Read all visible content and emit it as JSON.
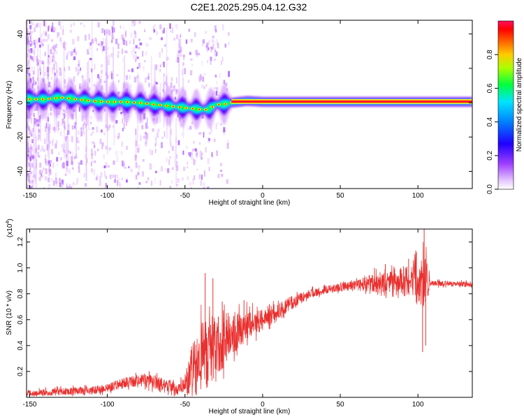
{
  "title": "C2E1.2025.295.04.12.G32",
  "chart_data": [
    {
      "type": "heatmap",
      "name": "spectrogram",
      "xlabel": "Height of straight line (km)",
      "ylabel": "Frequency (Hz)",
      "xlim": [
        -152,
        135
      ],
      "ylim": [
        -50,
        48
      ],
      "x_ticks": [
        -150,
        -100,
        -50,
        0,
        50,
        100
      ],
      "x_tick_labels": [
        "-150",
        "-100",
        "-50",
        "0",
        "50",
        "100"
      ],
      "y_ticks": [
        -40,
        -20,
        0,
        20,
        40
      ],
      "y_tick_labels": [
        "-40",
        "-20",
        "0",
        "20",
        "40"
      ],
      "ridge": {
        "description": "dominant frequency ridge (Hz) vs height (km)",
        "x": [
          -152,
          -140,
          -130,
          -120,
          -110,
          -100,
          -90,
          -80,
          -70,
          -60,
          -50,
          -40,
          -35,
          -30,
          -25,
          -20,
          -10,
          0,
          135
        ],
        "y": [
          2,
          2,
          3,
          2,
          1,
          0.5,
          0.5,
          0,
          -1,
          -2,
          -3,
          -4,
          -4,
          -1,
          -1,
          0,
          1,
          0.5,
          0.5
        ]
      },
      "colorbar": {
        "label": "Normalized spectral amplitude",
        "range": [
          0,
          1
        ],
        "ticks": [
          0,
          0.2,
          0.4,
          0.6,
          0.8
        ],
        "tick_labels": [
          "0.0",
          "0.2",
          "0.4",
          "0.6",
          "0.8"
        ],
        "colormap": [
          "#ffffff",
          "#cc88ff",
          "#7a00ff",
          "#0000ff",
          "#00e5ff",
          "#00ff33",
          "#ffff00",
          "#ff8000",
          "#ff0000",
          "#ff0066"
        ]
      }
    },
    {
      "type": "line",
      "name": "snr",
      "xlabel": "Height of straight line (km)",
      "ylabel": "SNR (10 * v/v)",
      "y_scale_label": "(x10",
      "y_scale_exp": "4",
      "y_scale_close": ")",
      "xlim": [
        -152,
        135
      ],
      "ylim": [
        0,
        1.3
      ],
      "x_ticks": [
        -150,
        -100,
        -50,
        0,
        50,
        100
      ],
      "x_tick_labels": [
        "-150",
        "-100",
        "-50",
        "0",
        "50",
        "100"
      ],
      "y_ticks": [
        0.2,
        0.4,
        0.6,
        0.8,
        1.0,
        1.2
      ],
      "y_tick_labels": [
        "0.2",
        "0.4",
        "0.6",
        "0.8",
        "1.0",
        "1.2"
      ],
      "color": "#e8302e",
      "baseline": {
        "x": [
          -152,
          -140,
          -120,
          -105,
          -95,
          -85,
          -75,
          -65,
          -55,
          -48,
          -42,
          -35,
          -28,
          -20,
          -10,
          0,
          10,
          20,
          30,
          40,
          50,
          60,
          70,
          80,
          90,
          100,
          110,
          120,
          135
        ],
        "y": [
          0.03,
          0.04,
          0.05,
          0.06,
          0.09,
          0.12,
          0.13,
          0.1,
          0.06,
          0.12,
          0.28,
          0.35,
          0.4,
          0.5,
          0.55,
          0.6,
          0.66,
          0.74,
          0.8,
          0.83,
          0.85,
          0.87,
          0.88,
          0.89,
          0.9,
          0.9,
          0.88,
          0.88,
          0.87
        ]
      },
      "noise": {
        "x": [
          -152,
          -100,
          -80,
          -50,
          -45,
          -35,
          -25,
          -10,
          0,
          20,
          30,
          60,
          70,
          85,
          95,
          100,
          105,
          108,
          135
        ],
        "y": [
          0.025,
          0.03,
          0.05,
          0.05,
          0.25,
          0.28,
          0.2,
          0.12,
          0.08,
          0.05,
          0.03,
          0.03,
          0.07,
          0.08,
          0.12,
          0.22,
          0.2,
          0.02,
          0.02
        ]
      },
      "spikes": [
        {
          "x": -37,
          "y": 0.96
        },
        {
          "x": -32,
          "y": 0.92
        },
        {
          "x": -26,
          "y": 0.74
        },
        {
          "x": -12,
          "y": 0.75
        },
        {
          "x": 66,
          "y": 0.9
        },
        {
          "x": 72,
          "y": 1.0
        },
        {
          "x": 79,
          "y": 1.03
        },
        {
          "x": 94,
          "y": 1.07
        },
        {
          "x": 99,
          "y": 1.12
        },
        {
          "x": 103,
          "y": 0.35
        },
        {
          "x": 104,
          "y": 1.3
        },
        {
          "x": 105,
          "y": 0.4
        }
      ]
    }
  ]
}
